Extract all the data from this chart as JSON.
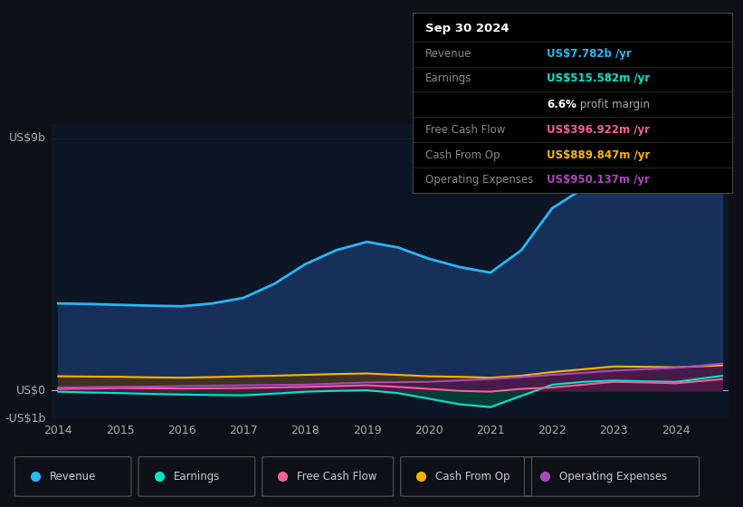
{
  "bg_color": "#0d1117",
  "chart_bg": "#0d1624",
  "ylabel_top": "US$9b",
  "ylabel_zero": "US$0",
  "ylabel_neg": "-US$1b",
  "ylim": [
    -1.0,
    9.5
  ],
  "years": [
    2014,
    2014.5,
    2015,
    2015.5,
    2016,
    2016.5,
    2017,
    2017.5,
    2018,
    2018.5,
    2019,
    2019.5,
    2020,
    2020.5,
    2021,
    2021.5,
    2022,
    2022.5,
    2023,
    2023.5,
    2024,
    2024.75
  ],
  "revenue": [
    3.1,
    3.08,
    3.05,
    3.02,
    3.0,
    3.1,
    3.3,
    3.8,
    4.5,
    5.0,
    5.3,
    5.1,
    4.7,
    4.4,
    4.2,
    5.0,
    6.5,
    7.2,
    8.0,
    7.8,
    7.5,
    7.782
  ],
  "earnings": [
    -0.05,
    -0.08,
    -0.1,
    -0.13,
    -0.15,
    -0.17,
    -0.18,
    -0.12,
    -0.05,
    -0.02,
    0.0,
    -0.1,
    -0.3,
    -0.5,
    -0.6,
    -0.2,
    0.2,
    0.3,
    0.35,
    0.32,
    0.3,
    0.516
  ],
  "free_cash_flow": [
    0.05,
    0.06,
    0.08,
    0.07,
    0.06,
    0.07,
    0.08,
    0.1,
    0.12,
    0.15,
    0.18,
    0.12,
    0.05,
    -0.02,
    -0.05,
    0.05,
    0.1,
    0.2,
    0.3,
    0.28,
    0.25,
    0.397
  ],
  "cash_from_op": [
    0.5,
    0.49,
    0.48,
    0.46,
    0.45,
    0.47,
    0.5,
    0.52,
    0.55,
    0.58,
    0.6,
    0.55,
    0.5,
    0.48,
    0.45,
    0.52,
    0.65,
    0.75,
    0.85,
    0.84,
    0.82,
    0.89
  ],
  "operating_expenses": [
    0.1,
    0.11,
    0.12,
    0.13,
    0.15,
    0.16,
    0.18,
    0.19,
    0.2,
    0.24,
    0.28,
    0.29,
    0.3,
    0.35,
    0.4,
    0.47,
    0.55,
    0.62,
    0.7,
    0.75,
    0.8,
    0.95
  ],
  "revenue_color": "#29b6f6",
  "earnings_color": "#00e5cc",
  "fcf_color": "#f06292",
  "cash_op_color": "#ffb300",
  "op_exp_color": "#ab47bc",
  "revenue_fill": "#1a3a6b",
  "earnings_fill": "#004d40",
  "fcf_fill": "#6a0f35",
  "cash_op_fill": "#5a3500",
  "op_exp_fill": "#4a1060",
  "tooltip": {
    "date": "Sep 30 2024",
    "revenue_val": "US$7.782b",
    "earnings_val": "US$515.582m",
    "profit_margin": "6.6%",
    "fcf_val": "US$396.922m",
    "cash_op_val": "US$889.847m",
    "op_exp_val": "US$950.137m"
  },
  "legend_items": [
    "Revenue",
    "Earnings",
    "Free Cash Flow",
    "Cash From Op",
    "Operating Expenses"
  ]
}
